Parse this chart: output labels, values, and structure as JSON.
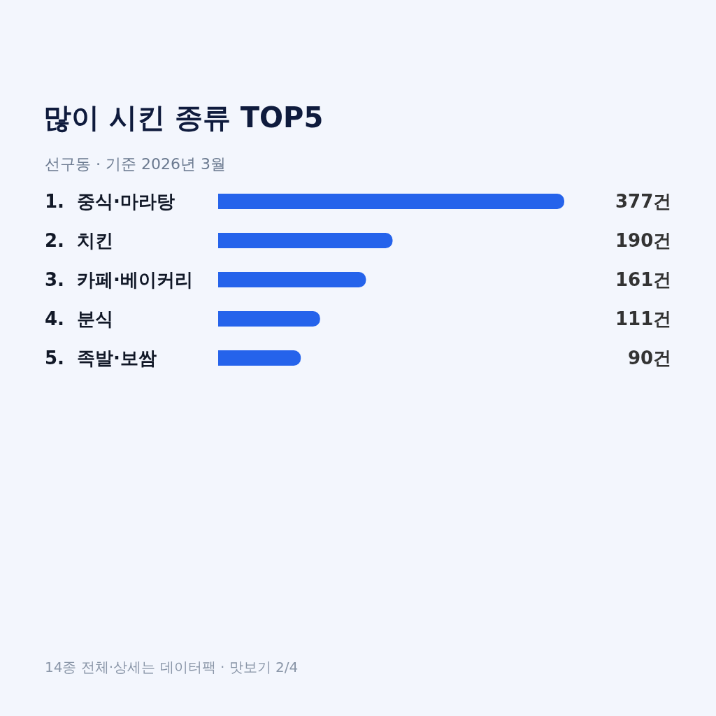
{
  "chart_data": {
    "type": "bar",
    "orientation": "horizontal",
    "title": "많이 시킨 종류 TOP5",
    "subtitle": "선구동 · 기준 2026년 3월",
    "categories": [
      "1.  중식·마라탕",
      "2.  치킨",
      "3.  카페·베이커리",
      "4.  분식",
      "5.  족발·보쌈"
    ],
    "values": [
      377,
      190,
      161,
      111,
      90
    ],
    "value_labels": [
      "377건",
      "190건",
      "161건",
      "111건",
      "90건"
    ],
    "color": "#2563eb",
    "annotations": [
      "14종 전체·상세는 데이터팩 · 맛보기 2/4"
    ]
  }
}
